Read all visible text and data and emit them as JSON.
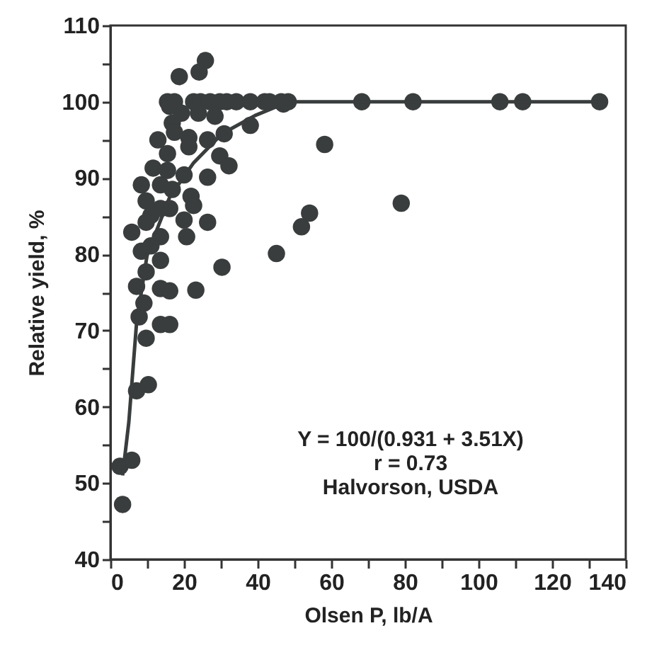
{
  "chart_data": {
    "type": "scatter",
    "xlabel": "Olsen P, lb/A",
    "ylabel": "Relative yield, %",
    "annotations": [
      "Y = 100/(0.931 + 3.51X)",
      "r = 0.73",
      "Halvorson, USDA"
    ],
    "xlim": [
      0,
      140
    ],
    "ylim": [
      40,
      110
    ],
    "xticks": [
      0,
      {
        "value": 10,
        "label": null
      },
      20,
      {
        "value": 30,
        "label": null
      },
      40,
      {
        "value": 50,
        "label": null
      },
      60,
      {
        "value": 70,
        "label": null
      },
      80,
      {
        "value": 90,
        "label": null
      },
      100,
      {
        "value": 110,
        "label": null
      },
      120,
      {
        "value": 130,
        "label": null
      },
      140
    ],
    "yticks": [
      40,
      {
        "value": 45,
        "label": null
      },
      50,
      {
        "value": 55,
        "label": null
      },
      60,
      {
        "value": 65,
        "label": null
      },
      70,
      {
        "value": 75,
        "label": null
      },
      80,
      {
        "value": 85,
        "label": null
      },
      90,
      {
        "value": 95,
        "label": null
      },
      100,
      {
        "value": 105,
        "label": null
      },
      110
    ],
    "grid": false,
    "series": [
      {
        "marker": "circle",
        "color": "#3a3d3d",
        "x": [
          25.8,
          24.1,
          18.7,
          15.5,
          17.4,
          22.6,
          24.5,
          27.1,
          29.7,
          31.6,
          34.2,
          38,
          41.9,
          46.4,
          16.1,
          19.3,
          23.9,
          28.4,
          38,
          30.9,
          16.8,
          17.4,
          12.9,
          21.3,
          21.3,
          26.4,
          15.5,
          29.7,
          32.2,
          11.6,
          15.5,
          20,
          26.4,
          8.4,
          13.6,
          16.8,
          9.7,
          21.9,
          22.6,
          13.6,
          16.1,
          11,
          9.7,
          5.8,
          20,
          26.4,
          13.6,
          20.7,
          8.4,
          11,
          13.6,
          45.1,
          30.3,
          9.7,
          7.1,
          13.6,
          16.1,
          23.2,
          9.1,
          7.8,
          13.6,
          16.1,
          9.7,
          7.1,
          10.3,
          2.6,
          5.8,
          3.3,
          43.2,
          47,
          48.3,
          68.3,
          82.2,
          105.8,
          112,
          132.9,
          58.2,
          54.1,
          51.9,
          79
        ],
        "values": [
          105.4,
          103.9,
          103.3,
          100,
          100,
          100,
          100,
          100,
          100,
          100,
          100,
          100,
          100,
          100,
          99.4,
          98.5,
          98.5,
          98.1,
          96.9,
          95.8,
          97.2,
          96,
          95,
          95.3,
          94.1,
          95,
          93.2,
          92.9,
          91.6,
          91.3,
          91,
          90.4,
          90.1,
          89.1,
          89.1,
          88.5,
          87,
          87.6,
          86.4,
          86,
          86,
          85.1,
          84.2,
          82.9,
          84.5,
          84.2,
          82.3,
          82.3,
          80.4,
          81.1,
          79.2,
          80.1,
          78.3,
          77.7,
          75.8,
          75.5,
          75.2,
          75.3,
          73.6,
          71.8,
          70.8,
          70.8,
          69,
          62.1,
          62.9,
          52.2,
          53,
          47.2,
          100,
          99.7,
          100,
          100,
          100,
          100,
          100,
          100,
          94.4,
          85.4,
          83.6,
          86.7
        ]
      },
      {
        "type": "line",
        "marker": "none",
        "line_style": "solid",
        "color": "#3a3d3d",
        "x": [
          3.3,
          5,
          7.1,
          10,
          16.1,
          22.6,
          30.3,
          39.3,
          46.4,
          50,
          132.9
        ],
        "values": [
          51,
          58,
          71,
          80,
          87.5,
          92,
          95.8,
          98.2,
          99.6,
          100,
          100
        ]
      }
    ]
  }
}
